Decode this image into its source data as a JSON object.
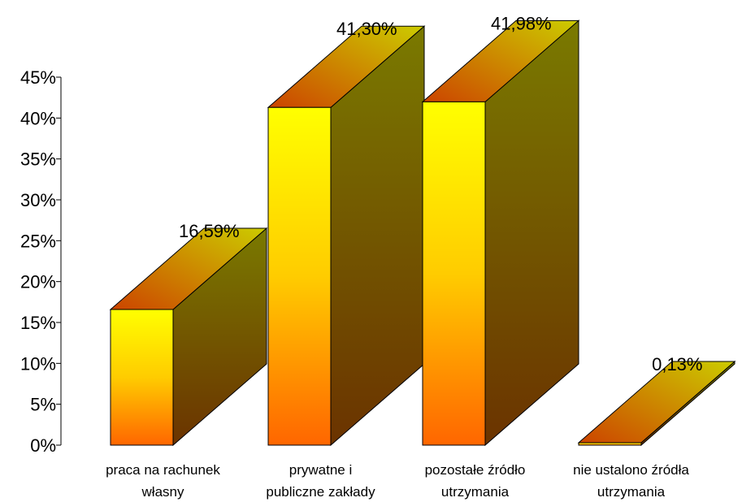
{
  "chart_data": {
    "type": "bar",
    "categories": [
      [
        "praca na rachunek",
        "własny"
      ],
      [
        "prywatne i",
        "publiczne zakłady"
      ],
      [
        "pozostałe źródło",
        "utrzymania"
      ],
      [
        "nie ustalono źródła",
        "utrzymania"
      ]
    ],
    "values": [
      16.59,
      41.3,
      41.98,
      0.13
    ],
    "value_labels": [
      "16,59%",
      "41,30%",
      "41,98%",
      "0,13%"
    ],
    "ylim": [
      0,
      45
    ],
    "yticks": [
      0,
      5,
      10,
      15,
      20,
      25,
      30,
      35,
      40,
      45
    ],
    "ytick_labels": [
      "0%",
      "5%",
      "10%",
      "15%",
      "20%",
      "25%",
      "30%",
      "35%",
      "40%",
      "45%"
    ],
    "grid": false,
    "legend": "none",
    "colors": {
      "front_top": "#ffff00",
      "front_mid": "#ffcc00",
      "front_bottom": "#ff6600",
      "side_top": "#7a7a00",
      "side_bottom": "#6b3300",
      "top_dark": "#cc4400",
      "top_light": "#cccc00",
      "edge": "#000000"
    }
  }
}
